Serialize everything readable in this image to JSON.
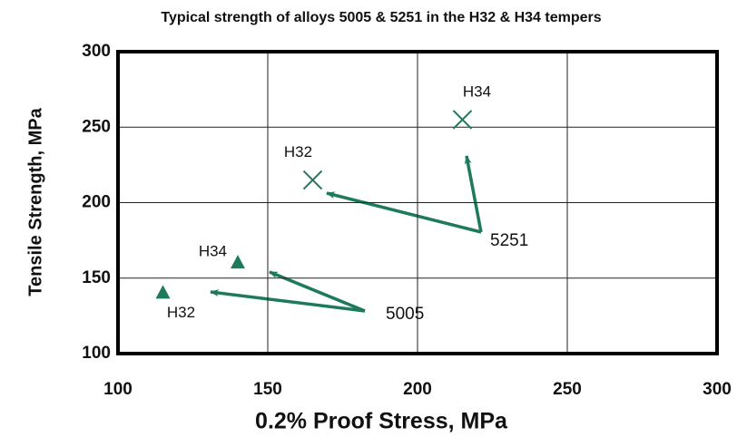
{
  "chart_data": {
    "type": "scatter",
    "title": "Typical strength of alloys 5005 & 5251 in the H32 & H34 tempers",
    "x_label": "0.2% Proof Stress,  MPa",
    "y_label": "Tensile Strength,  MPa",
    "series": [
      {
        "name": "5005",
        "color": "#1d7a5c",
        "marker": "triangle",
        "x": [
          115,
          140
        ],
        "values": [
          140,
          160
        ],
        "point_labels": [
          "H32",
          "H34"
        ]
      },
      {
        "name": "5251",
        "color": "#1d7a5c",
        "marker": "x",
        "x": [
          165,
          215
        ],
        "values": [
          215,
          255
        ],
        "point_labels": [
          "H32",
          "H34"
        ]
      }
    ],
    "xlim": [
      100,
      300
    ],
    "xticks": [
      100,
      150,
      200,
      250,
      300
    ],
    "ylim": [
      100,
      300
    ],
    "yticks": [
      100,
      150,
      200,
      250,
      300
    ],
    "grid": true
  }
}
